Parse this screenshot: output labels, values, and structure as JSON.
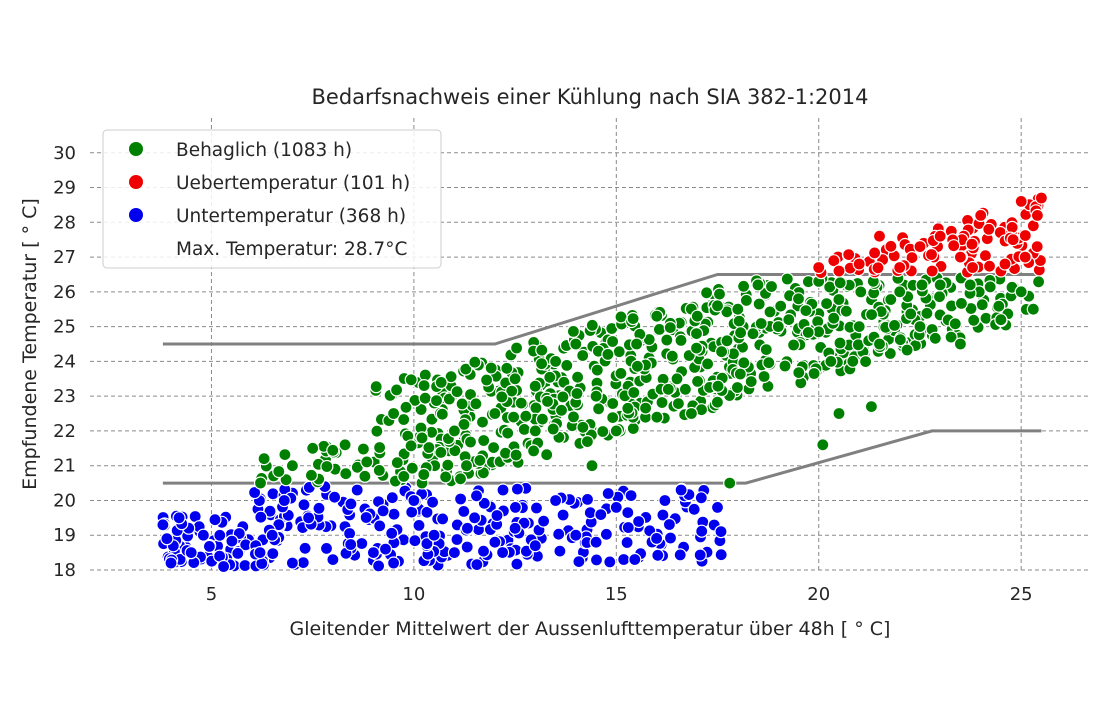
{
  "chart_data": {
    "type": "scatter",
    "title": "Bedarfsnachweis einer Kühlung nach SIA 382-1:2014",
    "xlabel": "Gleitender Mittelwert der Aussenlufttemperatur über 48h  [$^\\circ$C]",
    "ylabel": "Empfundene Temperatur  [$^\\circ$C]",
    "xlabel_display": "Gleitender Mittelwert der Aussenlufttemperatur über 48h  [ ° C]",
    "ylabel_display": "Empfundene Temperatur  [ ° C]",
    "xlim": [
      2.0,
      26.7
    ],
    "ylim": [
      18.0,
      31.0
    ],
    "xticks": [
      5,
      10,
      15,
      20,
      25
    ],
    "yticks": [
      18,
      19,
      20,
      21,
      22,
      23,
      24,
      25,
      26,
      27,
      28,
      29,
      30
    ],
    "grid": true,
    "legend_position": "upper left",
    "legend": [
      {
        "label": "Behaglich (1083 h)",
        "color": "#008000"
      },
      {
        "label": "Uebertemperatur (101 h)",
        "color": "#ee0000"
      },
      {
        "label": "Untertemperatur (368 h)",
        "color": "#0000ee"
      },
      {
        "label": "Max. Temperatur: 28.7°C",
        "color": null
      }
    ],
    "limit_lines": [
      {
        "name": "upper",
        "x": [
          3.8,
          12.0,
          17.5,
          25.5
        ],
        "y": [
          24.5,
          24.5,
          26.5,
          26.5
        ],
        "color": "#808080"
      },
      {
        "name": "lower",
        "x": [
          3.8,
          18.2,
          22.8,
          25.5
        ],
        "y": [
          20.5,
          20.5,
          22.0,
          22.0
        ],
        "color": "#808080"
      }
    ],
    "series": [
      {
        "color": "#008000",
        "sample_points": [
          [
            6.3,
            21.2
          ],
          [
            7.0,
            21.0
          ],
          [
            7.5,
            21.5
          ],
          [
            8.3,
            21.6
          ],
          [
            9.5,
            22.5
          ],
          [
            10.2,
            21.8
          ],
          [
            11.0,
            22.0
          ],
          [
            12.0,
            22.5
          ],
          [
            12.5,
            23.5
          ],
          [
            13.0,
            22.0
          ],
          [
            13.5,
            24.0
          ],
          [
            14.0,
            24.5
          ],
          [
            14.5,
            23.0
          ],
          [
            15.0,
            22.0
          ],
          [
            15.5,
            24.5
          ],
          [
            16.0,
            25.3
          ],
          [
            16.5,
            23.5
          ],
          [
            17.0,
            25.3
          ],
          [
            17.5,
            25.6
          ],
          [
            18.0,
            25.5
          ],
          [
            18.5,
            26.2
          ],
          [
            19.0,
            25.0
          ],
          [
            19.5,
            25.8
          ],
          [
            20.0,
            26.3
          ],
          [
            20.3,
            24.0
          ],
          [
            20.5,
            22.5
          ],
          [
            21.0,
            25.0
          ],
          [
            21.5,
            24.5
          ],
          [
            22.0,
            26.0
          ],
          [
            22.5,
            25.0
          ],
          [
            23.0,
            26.2
          ],
          [
            23.5,
            24.5
          ],
          [
            24.5,
            25.2
          ],
          [
            25.0,
            26.0
          ],
          [
            25.3,
            25.5
          ],
          [
            21.3,
            22.7
          ],
          [
            20.1,
            21.6
          ],
          [
            17.8,
            20.5
          ],
          [
            14.4,
            21.0
          ],
          [
            11.3,
            21.0
          ]
        ]
      },
      {
        "color": "#ee0000",
        "sample_points": [
          [
            20.0,
            26.7
          ],
          [
            20.5,
            26.6
          ],
          [
            21.0,
            26.8
          ],
          [
            21.5,
            27.6
          ],
          [
            22.0,
            26.7
          ],
          [
            22.5,
            27.3
          ],
          [
            23.0,
            27.6
          ],
          [
            23.5,
            27.0
          ],
          [
            24.0,
            28.2
          ],
          [
            24.2,
            27.8
          ],
          [
            24.5,
            26.6
          ],
          [
            24.8,
            27.5
          ],
          [
            25.0,
            28.6
          ],
          [
            25.1,
            27.0
          ],
          [
            25.3,
            27.9
          ],
          [
            25.4,
            28.2
          ],
          [
            25.5,
            28.7
          ],
          [
            24.6,
            26.8
          ],
          [
            23.8,
            26.7
          ],
          [
            22.8,
            26.6
          ]
        ]
      },
      {
        "color": "#0000ee",
        "sample_points": [
          [
            3.8,
            19.3
          ],
          [
            3.9,
            18.9
          ],
          [
            4.0,
            18.2
          ],
          [
            4.2,
            19.5
          ],
          [
            4.5,
            18.5
          ],
          [
            4.8,
            19.0
          ],
          [
            5.2,
            18.4
          ],
          [
            5.3,
            18.1
          ],
          [
            6.2,
            18.5
          ],
          [
            6.5,
            19.0
          ],
          [
            6.8,
            20.0
          ],
          [
            7.0,
            18.2
          ],
          [
            7.4,
            19.5
          ],
          [
            7.8,
            20.4
          ],
          [
            8.0,
            18.3
          ],
          [
            8.6,
            20.3
          ],
          [
            9.0,
            18.5
          ],
          [
            9.5,
            18.2
          ],
          [
            10.0,
            20.0
          ],
          [
            10.5,
            19.0
          ],
          [
            11.0,
            18.5
          ],
          [
            11.5,
            19.5
          ],
          [
            12.0,
            18.8
          ],
          [
            12.5,
            19.2
          ],
          [
            13.0,
            18.7
          ],
          [
            13.5,
            20.0
          ],
          [
            14.0,
            19.0
          ],
          [
            14.5,
            18.8
          ],
          [
            14.8,
            20.2
          ],
          [
            15.0,
            19.8
          ],
          [
            16.2,
            20.0
          ],
          [
            16.6,
            20.3
          ],
          [
            17.5,
            19.8
          ],
          [
            12.2,
            20.3
          ],
          [
            9.3,
            18.6
          ]
        ]
      }
    ],
    "max_temperature": 28.7
  }
}
